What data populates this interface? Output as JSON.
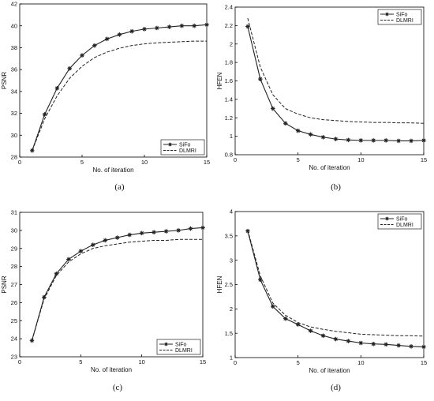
{
  "chart_data": [
    {
      "type": "line",
      "panel_label": "(a)",
      "xlabel": "No. of iteration",
      "ylabel": "PSNR",
      "xlim": [
        0,
        15
      ],
      "ylim": [
        28,
        42
      ],
      "xticks": [
        0,
        5,
        10,
        15
      ],
      "yticks": [
        28,
        30,
        32,
        34,
        36,
        38,
        40,
        42
      ],
      "legend_position": "bottom-right",
      "series": [
        {
          "name": "SiFo",
          "style": "solid-star",
          "x": [
            1,
            2,
            3,
            4,
            5,
            6,
            7,
            8,
            9,
            10,
            11,
            12,
            13,
            14,
            15
          ],
          "y": [
            28.6,
            31.9,
            34.3,
            36.1,
            37.3,
            38.2,
            38.8,
            39.2,
            39.5,
            39.7,
            39.8,
            39.9,
            40.0,
            40.0,
            40.1
          ]
        },
        {
          "name": "DLMRI",
          "style": "dashed",
          "x": [
            1,
            2,
            3,
            4,
            5,
            6,
            7,
            8,
            9,
            10,
            11,
            12,
            13,
            14,
            15
          ],
          "y": [
            28.6,
            31.5,
            33.6,
            35.2,
            36.3,
            37.1,
            37.6,
            37.95,
            38.2,
            38.35,
            38.45,
            38.5,
            38.55,
            38.6,
            38.6
          ]
        }
      ]
    },
    {
      "type": "line",
      "panel_label": "(b)",
      "xlabel": "No. of iteration",
      "ylabel": "HFEN",
      "xlim": [
        0,
        15
      ],
      "ylim": [
        0.8,
        2.4
      ],
      "xticks": [
        0,
        5,
        10,
        15
      ],
      "yticks": [
        0.8,
        1,
        1.2,
        1.4,
        1.6,
        1.8,
        2,
        2.2,
        2.4
      ],
      "legend_position": "top-right",
      "series": [
        {
          "name": "SiFo",
          "style": "solid-star",
          "x": [
            1,
            2,
            3,
            4,
            5,
            6,
            7,
            8,
            9,
            10,
            11,
            12,
            13,
            14,
            15
          ],
          "y": [
            2.19,
            1.62,
            1.3,
            1.14,
            1.06,
            1.02,
            0.99,
            0.97,
            0.96,
            0.955,
            0.955,
            0.955,
            0.95,
            0.95,
            0.955
          ]
        },
        {
          "name": "DLMRI",
          "style": "dashed",
          "x": [
            1,
            2,
            3,
            4,
            5,
            6,
            7,
            8,
            9,
            10,
            11,
            12,
            13,
            14,
            15
          ],
          "y": [
            2.28,
            1.75,
            1.45,
            1.3,
            1.24,
            1.2,
            1.18,
            1.17,
            1.16,
            1.155,
            1.15,
            1.15,
            1.145,
            1.145,
            1.14
          ]
        }
      ]
    },
    {
      "type": "line",
      "panel_label": "(c)",
      "xlabel": "No. of iteration",
      "ylabel": "PSNR",
      "xlim": [
        0,
        15
      ],
      "ylim": [
        23,
        31
      ],
      "xticks": [
        0,
        5,
        10,
        15
      ],
      "yticks": [
        23,
        24,
        25,
        26,
        27,
        28,
        29,
        30,
        31
      ],
      "legend_position": "bottom-right",
      "series": [
        {
          "name": "SiFo",
          "style": "solid-star",
          "x": [
            1,
            2,
            3,
            4,
            5,
            6,
            7,
            8,
            9,
            10,
            11,
            12,
            13,
            14,
            15
          ],
          "y": [
            23.9,
            26.3,
            27.6,
            28.4,
            28.85,
            29.2,
            29.45,
            29.6,
            29.75,
            29.85,
            29.9,
            29.95,
            30.0,
            30.1,
            30.15
          ]
        },
        {
          "name": "DLMRI",
          "style": "dashed",
          "x": [
            1,
            2,
            3,
            4,
            5,
            6,
            7,
            8,
            9,
            10,
            11,
            12,
            13,
            14,
            15
          ],
          "y": [
            23.9,
            26.2,
            27.5,
            28.25,
            28.7,
            29.0,
            29.15,
            29.25,
            29.35,
            29.4,
            29.45,
            29.45,
            29.5,
            29.5,
            29.5
          ]
        }
      ]
    },
    {
      "type": "line",
      "panel_label": "(d)",
      "xlabel": "No. of iteration",
      "ylabel": "HFEN",
      "xlim": [
        0,
        15
      ],
      "ylim": [
        1,
        4
      ],
      "xticks": [
        0,
        5,
        10,
        15
      ],
      "yticks": [
        1,
        1.5,
        2,
        2.5,
        3,
        3.5,
        4
      ],
      "legend_position": "top-right",
      "series": [
        {
          "name": "SiFo",
          "style": "solid-star",
          "x": [
            1,
            2,
            3,
            4,
            5,
            6,
            7,
            8,
            9,
            10,
            11,
            12,
            13,
            14,
            15
          ],
          "y": [
            3.6,
            2.6,
            2.05,
            1.8,
            1.68,
            1.55,
            1.45,
            1.38,
            1.34,
            1.3,
            1.28,
            1.27,
            1.25,
            1.23,
            1.22
          ]
        },
        {
          "name": "DLMRI",
          "style": "dashed",
          "x": [
            1,
            2,
            3,
            4,
            5,
            6,
            7,
            8,
            9,
            10,
            11,
            12,
            13,
            14,
            15
          ],
          "y": [
            3.62,
            2.68,
            2.12,
            1.87,
            1.72,
            1.63,
            1.58,
            1.54,
            1.51,
            1.48,
            1.47,
            1.46,
            1.45,
            1.45,
            1.44
          ]
        }
      ]
    }
  ],
  "colors": {
    "axis": "#000000",
    "line": "#222222"
  }
}
